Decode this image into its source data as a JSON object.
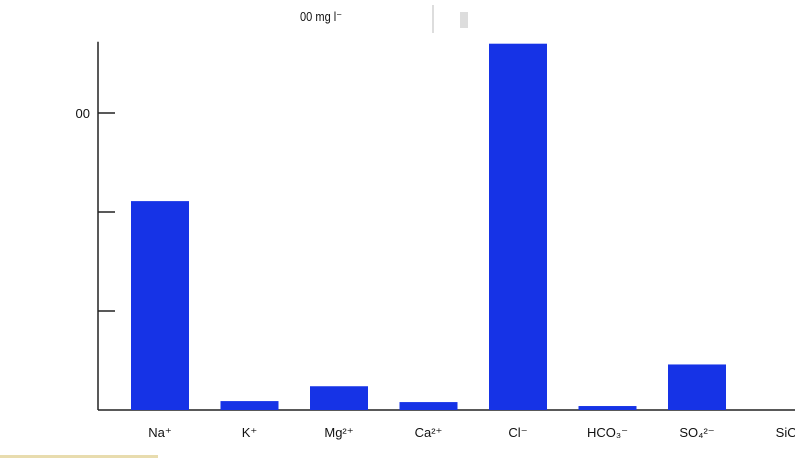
{
  "chart_data": {
    "type": "bar",
    "title": "00 mg l⁻",
    "xlabel": "",
    "ylabel": "",
    "categories": [
      "Na⁺",
      "K⁺",
      "Mg²⁺",
      "Ca²⁺",
      "Cl⁻",
      "HCO₃⁻",
      "SO₄²⁻",
      "SiO"
    ],
    "values": [
      2.11,
      0.09,
      0.24,
      0.08,
      3.7,
      0.04,
      0.46,
      0
    ],
    "ylim": [
      0,
      3.72
    ],
    "yticks": [
      1,
      2,
      3
    ],
    "ytick_labels": [
      "",
      "",
      "00"
    ],
    "grid": false,
    "bar_color": "#1633e6"
  }
}
